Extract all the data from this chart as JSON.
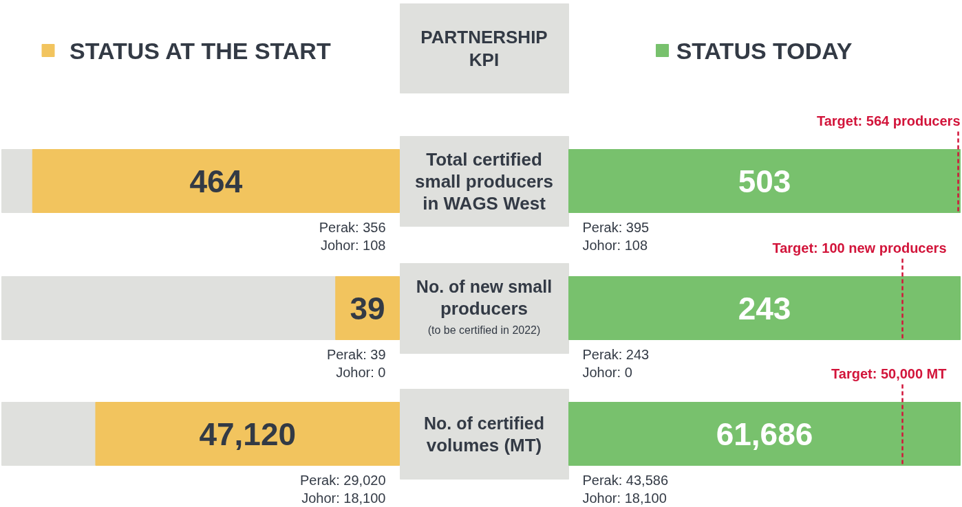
{
  "chart_data": {
    "type": "other",
    "title": "PARTNERSHIP\nKPI",
    "legend": "top",
    "categories": [
      "Total certified\nsmall producers\nin WAGS West",
      "No. of new small\nproducers\n(to be certified in 2022)",
      "No. of certified\nvolumes (MT)"
    ],
    "series": [
      {
        "name": "STATUS AT THE START",
        "color": "#f2c45e",
        "values": [
          464,
          39,
          47120
        ],
        "value_labels": [
          "464",
          "39",
          "47,120"
        ]
      },
      {
        "name": "STATUS TODAY",
        "color": "#78c16d",
        "values": [
          503,
          243,
          61686
        ],
        "value_labels": [
          "503",
          "243",
          "61,686"
        ]
      }
    ],
    "annotations": [
      "Perak: 356\nJohor: 108",
      "Perak: 395\nJohor: 108",
      "Perak: 39\nJohor: 0",
      "Perak: 243\nJohor: 0",
      "Perak: 29,020\nJohor: 18,100",
      "Perak: 43,586\nJohor: 18,100",
      "Target: 564 producers",
      "Target: 100 new producers",
      "Target: 50,000 MT"
    ]
  }
}
